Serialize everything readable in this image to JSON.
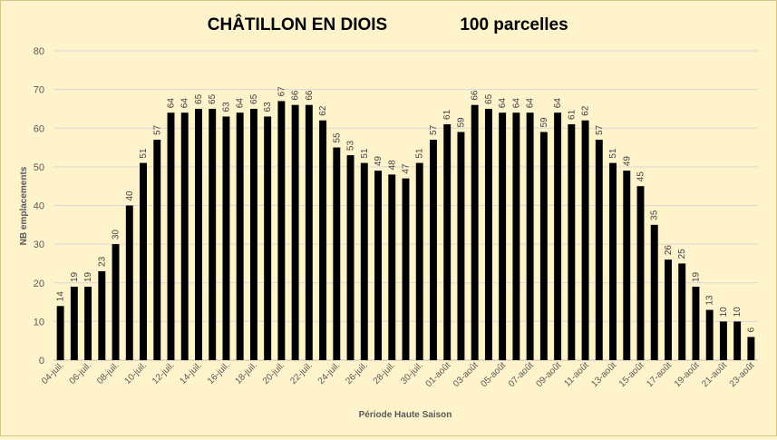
{
  "chart_data": {
    "type": "bar",
    "title": "CHÂTILLON EN DIOIS",
    "subtitle": "100 parcelles",
    "xlabel": "Période Haute Saison",
    "ylabel": "NB emplacements",
    "ylim": [
      0,
      80
    ],
    "yticks": [
      0,
      10,
      20,
      30,
      40,
      50,
      60,
      70,
      80
    ],
    "grid": true,
    "bar_color": "#000000",
    "background": "#fff3cc",
    "x_tick_labels": [
      "04-juil.",
      "06-juil.",
      "08-juil.",
      "10-juil.",
      "12-juil.",
      "14-juil.",
      "16-juil.",
      "18-juil.",
      "20-juil.",
      "22-juil.",
      "24-juil.",
      "26-juil.",
      "28-juil.",
      "30-juil.",
      "01-août",
      "03-août",
      "05-août",
      "07-août",
      "09-août",
      "11-août",
      "13-août",
      "15-août",
      "17-août",
      "19-août",
      "21-août",
      "23-août"
    ],
    "categories": [
      "04-juil.",
      "05-juil.",
      "06-juil.",
      "07-juil.",
      "08-juil.",
      "09-juil.",
      "10-juil.",
      "11-juil.",
      "12-juil.",
      "13-juil.",
      "14-juil.",
      "15-juil.",
      "16-juil.",
      "17-juil.",
      "18-juil.",
      "19-juil.",
      "20-juil.",
      "21-juil.",
      "22-juil.",
      "23-juil.",
      "24-juil.",
      "25-juil.",
      "26-juil.",
      "27-juil.",
      "28-juil.",
      "29-juil.",
      "30-juil.",
      "31-juil.",
      "01-août",
      "02-août",
      "03-août",
      "04-août",
      "05-août",
      "06-août",
      "07-août",
      "08-août",
      "09-août",
      "10-août",
      "11-août",
      "12-août",
      "13-août",
      "14-août",
      "15-août",
      "16-août",
      "17-août",
      "18-août",
      "19-août",
      "20-août",
      "21-août",
      "22-août",
      "23-août"
    ],
    "values": [
      14,
      19,
      19,
      23,
      30,
      40,
      51,
      57,
      64,
      64,
      65,
      65,
      63,
      64,
      65,
      63,
      67,
      66,
      66,
      62,
      55,
      53,
      51,
      49,
      48,
      47,
      51,
      57,
      61,
      59,
      66,
      65,
      64,
      64,
      64,
      59,
      64,
      61,
      62,
      57,
      51,
      49,
      45,
      35,
      26,
      25,
      19,
      13,
      10,
      10,
      6
    ]
  }
}
